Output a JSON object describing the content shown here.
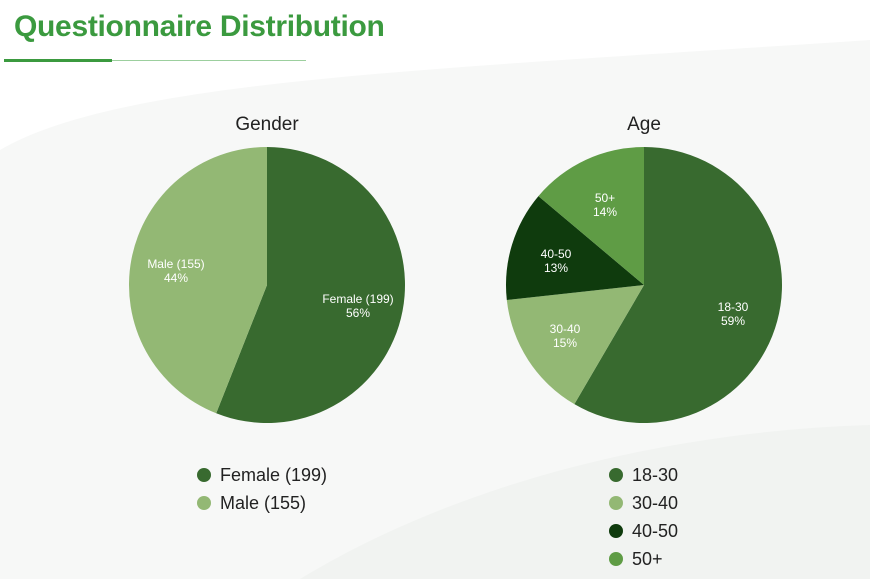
{
  "header": {
    "title": "Questionnaire Distribution"
  },
  "chart_data": [
    {
      "type": "pie",
      "title": "Gender",
      "start_angle_deg": 0,
      "direction": "clockwise",
      "legend_position": "bottom",
      "slices": [
        {
          "label": "Female (199)",
          "name": "Female",
          "count": 199,
          "percent": 56,
          "percent_label": "56%",
          "color": "#386a2f"
        },
        {
          "label": "Male (155)",
          "name": "Male",
          "count": 155,
          "percent": 44,
          "percent_label": "44%",
          "color": "#93b874"
        }
      ],
      "legend": [
        "Female (199)",
        "Male (155)"
      ]
    },
    {
      "type": "pie",
      "title": "Age",
      "start_angle_deg": 0,
      "direction": "clockwise",
      "legend_position": "bottom",
      "slices": [
        {
          "label": "18-30",
          "percent": 59,
          "percent_label": "59%",
          "color": "#386a2f"
        },
        {
          "label": "30-40",
          "percent": 15,
          "percent_label": "15%",
          "color": "#93b874"
        },
        {
          "label": "40-50",
          "percent": 13,
          "percent_label": "13%",
          "color": "#0f3b0d"
        },
        {
          "label": "50+",
          "percent": 14,
          "percent_label": "14%",
          "color": "#5f9c45"
        }
      ],
      "legend": [
        "18-30",
        "30-40",
        "40-50",
        "50+"
      ]
    }
  ]
}
